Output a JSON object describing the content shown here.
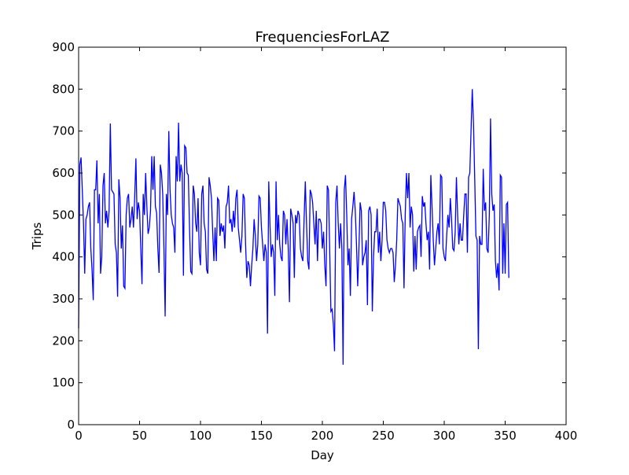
{
  "chart_data": {
    "type": "line",
    "title": "FrequenciesForLAZ",
    "x_label": "Day",
    "y_label": "Trips",
    "color": "#0000ff",
    "xlim": [
      0,
      400
    ],
    "xticks": [
      0,
      50,
      100,
      150,
      200,
      250,
      300,
      350,
      400
    ],
    "ylim": [
      0,
      900
    ],
    "yticks": [
      0,
      100,
      200,
      300,
      400,
      500,
      600,
      700,
      800,
      900
    ],
    "series": [
      {
        "name": "LAZ",
        "color": "#0000ff",
        "values": [
          230,
          620,
          637,
          560,
          480,
          360,
          490,
          500,
          520,
          530,
          420,
          370,
          297,
          560,
          560,
          630,
          480,
          550,
          360,
          400,
          570,
          600,
          480,
          510,
          470,
          510,
          718,
          560,
          555,
          550,
          430,
          410,
          305,
          585,
          540,
          420,
          475,
          330,
          325,
          500,
          540,
          550,
          470,
          490,
          520,
          470,
          540,
          635,
          490,
          530,
          510,
          420,
          335,
          550,
          500,
          600,
          520,
          455,
          470,
          510,
          640,
          560,
          640,
          520,
          505,
          420,
          362,
          620,
          600,
          550,
          420,
          258,
          550,
          500,
          700,
          560,
          500,
          480,
          470,
          410,
          640,
          580,
          720,
          580,
          620,
          600,
          355,
          665,
          660,
          600,
          595,
          470,
          365,
          360,
          570,
          550,
          480,
          460,
          540,
          410,
          380,
          550,
          570,
          480,
          460,
          370,
          360,
          590,
          570,
          540,
          460,
          390,
          470,
          390,
          540,
          535,
          450,
          480,
          460,
          475,
          420,
          520,
          530,
          570,
          480,
          490,
          460,
          510,
          470,
          540,
          560,
          470,
          440,
          410,
          450,
          550,
          540,
          430,
          350,
          390,
          380,
          330,
          380,
          420,
          490,
          450,
          390,
          430,
          545,
          540,
          470,
          430,
          390,
          430,
          410,
          217,
          580,
          480,
          400,
          430,
          410,
          307,
          580,
          440,
          500,
          430,
          400,
          390,
          510,
          500,
          430,
          490,
          420,
          292,
          515,
          500,
          480,
          350,
          500,
          480,
          510,
          500,
          420,
          400,
          390,
          490,
          580,
          480,
          390,
          370,
          560,
          550,
          530,
          480,
          430,
          510,
          390,
          490,
          490,
          480,
          420,
          460,
          380,
          330,
          570,
          560,
          420,
          270,
          275,
          240,
          175,
          530,
          570,
          480,
          420,
          480,
          420,
          143,
          560,
          595,
          500,
          380,
          420,
          307,
          490,
          520,
          555,
          510,
          430,
          330,
          420,
          530,
          510,
          380,
          400,
          410,
          440,
          285,
          510,
          520,
          500,
          270,
          400,
          460,
          460,
          515,
          410,
          460,
          390,
          440,
          530,
          530,
          510,
          440,
          420,
          410,
          420,
          420,
          410,
          340,
          380,
          440,
          540,
          530,
          520,
          490,
          480,
          325,
          500,
          600,
          540,
          600,
          470,
          520,
          500,
          365,
          450,
          370,
          460,
          470,
          475,
          400,
          545,
          520,
          530,
          480,
          440,
          460,
          370,
          595,
          520,
          440,
          380,
          420,
          460,
          480,
          430,
          595,
          590,
          420,
          400,
          390,
          450,
          500,
          470,
          540,
          490,
          420,
          415,
          460,
          590,
          500,
          430,
          480,
          440,
          440,
          500,
          550,
          550,
          410,
          590,
          600,
          700,
          800,
          720,
          590,
          450,
          440,
          180,
          450,
          430,
          430,
          610,
          510,
          530,
          420,
          410,
          500,
          730,
          550,
          510,
          525,
          390,
          350,
          385,
          320,
          595,
          590,
          360,
          480,
          360,
          525,
          530,
          350
        ]
      }
    ],
    "grid": false
  }
}
